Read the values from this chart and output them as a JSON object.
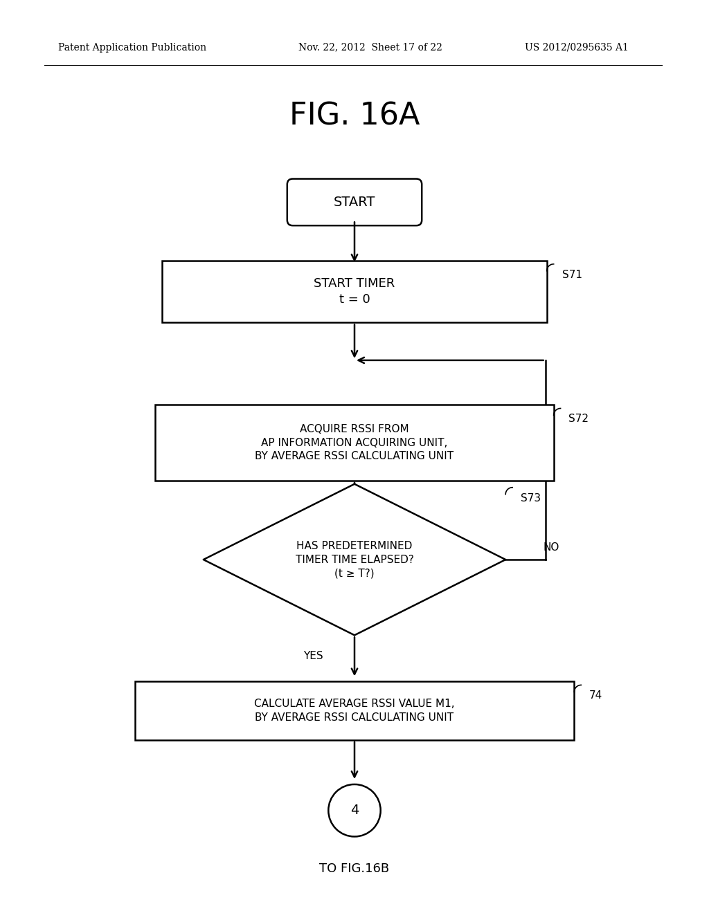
{
  "title": "FIG. 16A",
  "header_left": "Patent Application Publication",
  "header_mid": "Nov. 22, 2012  Sheet 17 of 22",
  "header_right": "US 2012/0295635 A1",
  "bg_color": "#ffffff",
  "text_color": "#000000",
  "start_text": "START",
  "s71_text": "START TIMER\nt = 0",
  "s71_label": "S71",
  "s72_text": "ACQUIRE RSSI FROM\nAP INFORMATION ACQUIRING UNIT,\nBY AVERAGE RSSI CALCULATING UNIT",
  "s72_label": "S72",
  "s73_text": "HAS PREDETERMINED\nTIMER TIME ELAPSED?\n(t ≥ T?)",
  "s73_label": "S73",
  "s73_no": "NO",
  "s73_yes": "YES",
  "s74_text": "CALCULATE AVERAGE RSSI VALUE M1,\nBY AVERAGE RSSI CALCULATING UNIT",
  "s74_label": "74",
  "circle_text": "4",
  "caption": "TO FIG.16B"
}
